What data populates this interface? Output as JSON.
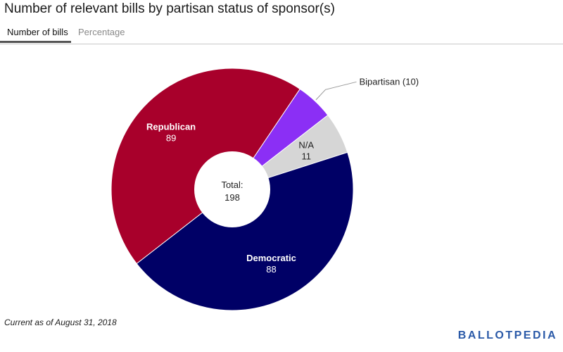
{
  "header": {
    "title": "Number of relevant bills by partisan status of sponsor(s)"
  },
  "tabs": [
    {
      "label": "Number of bills",
      "active": true
    },
    {
      "label": "Percentage",
      "active": false
    }
  ],
  "chart_data": {
    "type": "pie",
    "center_label": "Total:",
    "total": "198",
    "slices": [
      {
        "name": "Bipartisan",
        "value": 10,
        "color": "#8b2ff5",
        "callout": "Bipartisan (10)"
      },
      {
        "name": "N/A",
        "value": 11,
        "color": "#d6d6d6"
      },
      {
        "name": "Democratic",
        "value": 88,
        "color": "#000066"
      },
      {
        "name": "Republican",
        "value": 89,
        "color": "#a8002b"
      }
    ]
  },
  "footer": {
    "note": "Current as of August 31, 2018",
    "brand": "BALLOTPEDIA"
  }
}
